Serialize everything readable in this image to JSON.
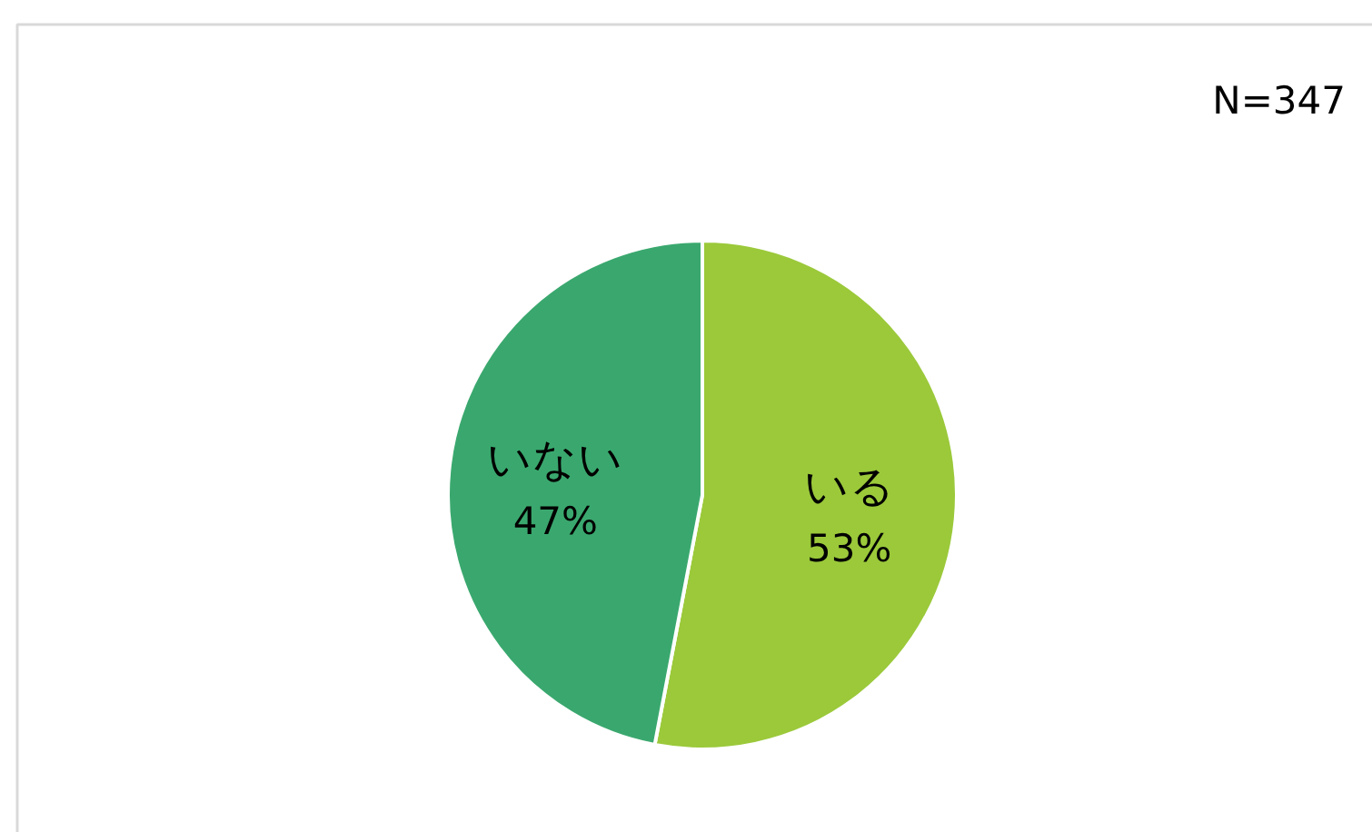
{
  "chart_data": {
    "type": "pie",
    "categories": [
      "いる",
      "いない"
    ],
    "values": [
      53,
      47
    ],
    "value_labels": [
      "53%",
      "47%"
    ],
    "colors": [
      "#9bc93a",
      "#3aa86e"
    ],
    "annotations": [
      "N=347"
    ]
  }
}
